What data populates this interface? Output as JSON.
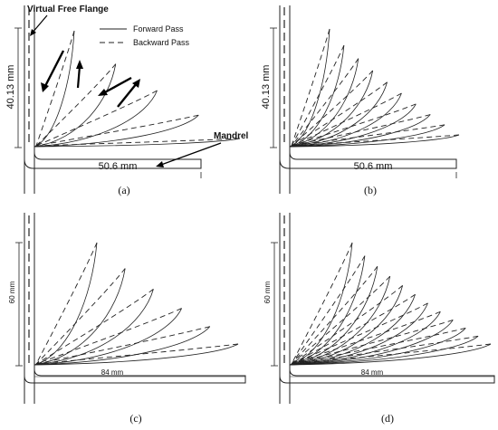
{
  "legend": {
    "forward": "Forward Pass",
    "backward": "Backward Pass"
  },
  "annotations": {
    "virtual_flange": "Virtual Free Flange",
    "mandrel": "Mandrel"
  },
  "panels": [
    {
      "caption": "(a)",
      "height_label": "40.13 mm",
      "width_label": "50.6 mm",
      "passes": 5
    },
    {
      "caption": "(b)",
      "height_label": "40.13 mm",
      "width_label": "50.6 mm",
      "passes": 10
    },
    {
      "caption": "(c)",
      "height_label": "60 mm",
      "width_label": "84 mm",
      "passes": 6
    },
    {
      "caption": "(d)",
      "height_label": "60 mm",
      "width_label": "84 mm",
      "passes": 12
    }
  ]
}
